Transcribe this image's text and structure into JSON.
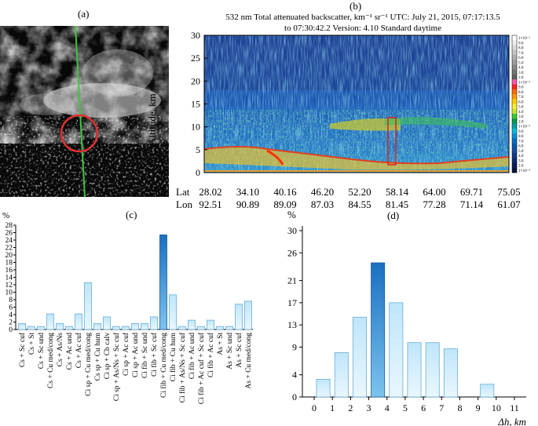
{
  "panel_a": {
    "label": "(a)",
    "track_color": "#3cc83c",
    "circle_color": "#e03030"
  },
  "panel_b": {
    "label": "(b)",
    "title_line1": "532 nm Total attenuated backscatter, km⁻¹ sr⁻¹ UTC: July 21, 2015, 07:17:13.5",
    "title_line2": "to 07:30:42.2 Version: 4.10 Standard daytime",
    "ylabel": "Altitude, km",
    "yticks": [
      "0",
      "5",
      "10",
      "15",
      "20",
      "25",
      "30"
    ],
    "ytick_values": [
      0,
      5,
      10,
      15,
      20,
      25,
      30
    ],
    "ylim": [
      0,
      30
    ],
    "lat_label": "Lat",
    "lon_label": "Lon",
    "lat": [
      "28.02",
      "34.10",
      "40.16",
      "46.20",
      "52.20",
      "58.14",
      "64.00",
      "69.71",
      "75.05"
    ],
    "lon": [
      "92.51",
      "90.89",
      "89.09",
      "87.03",
      "84.55",
      "81.45",
      "77.28",
      "71.14",
      "61.07"
    ],
    "colorbar_labels": [
      "1×10⁻¹",
      "9.0",
      "8.0",
      "7.0",
      "6.0",
      "5.0",
      "4.0",
      "3.0",
      "2.0",
      "1×10⁻²",
      "9.0",
      "8.0",
      "7.0",
      "6.0",
      "5.0",
      "4.0",
      "3.0",
      "2.0",
      "1×10⁻³",
      "9.0",
      "8.0",
      "7.0",
      "6.0",
      "5.0",
      "4.0",
      "3.0",
      "2.0",
      "1×10⁻⁴"
    ],
    "colorbar_colors": [
      "#ffffff",
      "#ececec",
      "#d8d8d8",
      "#c4c4c4",
      "#b0b0b0",
      "#9c9c9c",
      "#888888",
      "#747474",
      "#606060",
      "#ff55aa",
      "#ff2020",
      "#ff6a00",
      "#ff9900",
      "#ffcc00",
      "#ffee33",
      "#c8e632",
      "#33cc33",
      "#009a4d",
      "#00a0a0",
      "#00bcd8",
      "#0092d8",
      "#0070c8",
      "#0058b4",
      "#1a4ca0",
      "#103c88",
      "#0a2c70",
      "#081e58",
      "#061444"
    ]
  },
  "chart_data": [
    {
      "type": "bar",
      "panel": "(c)",
      "ylabel": "%",
      "ylim": [
        0,
        28
      ],
      "yticks": [
        0,
        2,
        4,
        6,
        8,
        10,
        12,
        14,
        16,
        18,
        20,
        22,
        24,
        26,
        28
      ],
      "categories": [
        "Cs + Sc cuf",
        "Cs + St",
        "Cs + Sc und",
        "Cs + Cu med/cong",
        "Cs + As/Ns",
        "Cs + Ac und",
        "Cs + Ac cuf",
        "Ci sp + Cu med/cong",
        "Cs sp + Cu hum",
        "Ci sp + Cb calv",
        "Ci sp + As/Ns + Sc cuf",
        "Ci sp + Ac cuf",
        "Ci sp + Ac und",
        "Ci fib + Sc und",
        "Ci fib + Sc cuf",
        "Ci fib + Cu med/cong",
        "Ci fib + Cu hum",
        "Ci fib + As/Ns + Sc cuf",
        "Ci fib + Ac und",
        "Ci fib + Ac cuf + Sc cuf",
        "Ci fib + Ac cuf",
        "As + St",
        "As + Sc und",
        "As + Sc cuf",
        "As + Cu med/cong"
      ],
      "values": [
        1.6,
        0.8,
        0.8,
        4.2,
        1.6,
        0.8,
        4.2,
        12.6,
        1.6,
        3.4,
        0.8,
        0.8,
        1.6,
        1.6,
        3.4,
        25.4,
        9.3,
        0.8,
        2.5,
        0.8,
        2.5,
        0.8,
        0.8,
        6.8,
        7.6
      ],
      "highlight_index": 15
    },
    {
      "type": "bar",
      "panel": "(d)",
      "ylabel": "%",
      "xlabel": "Δh, km",
      "ylim": [
        0,
        30
      ],
      "yticks": [
        0,
        4,
        9,
        13,
        17,
        21,
        26,
        30
      ],
      "xticks": [
        0,
        1,
        2,
        3,
        4,
        5,
        6,
        7,
        8,
        9,
        10,
        11
      ],
      "bins": [
        [
          0,
          1
        ],
        [
          1,
          2
        ],
        [
          2,
          3
        ],
        [
          3,
          4
        ],
        [
          4,
          5
        ],
        [
          5,
          6
        ],
        [
          6,
          7
        ],
        [
          7,
          8
        ],
        [
          9,
          10
        ]
      ],
      "values": [
        3.2,
        8.0,
        14.4,
        24.2,
        17.0,
        9.8,
        9.8,
        8.7,
        2.3
      ],
      "highlight_index": 3
    }
  ]
}
